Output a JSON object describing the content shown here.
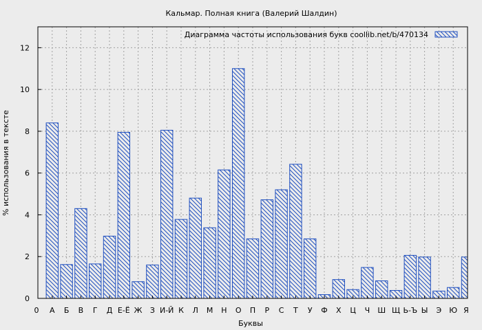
{
  "chart_data": {
    "type": "bar",
    "title": "Кальмар. Полная книга (Валерий Шалдин)",
    "xlabel": "Буквы",
    "ylabel": "% использования в тексте",
    "legend": {
      "label": "Диаграмма частоты использования букв  coollib.net/b/470134",
      "placement": "top-right"
    },
    "x_axis_end_labels": [
      "0",
      "Я"
    ],
    "categories": [
      "А",
      "Б",
      "В",
      "Г",
      "Д",
      "Е-Ё",
      "Ж",
      "З",
      "И-Й",
      "К",
      "Л",
      "М",
      "Н",
      "О",
      "П",
      "Р",
      "С",
      "Т",
      "У",
      "Ф",
      "Х",
      "Ц",
      "Ч",
      "Ш",
      "Щ",
      "Ь-Ъ",
      "Ы",
      "Э",
      "Ю",
      "Я"
    ],
    "values": [
      8.4,
      1.62,
      4.3,
      1.65,
      2.98,
      7.95,
      0.8,
      1.6,
      8.05,
      3.78,
      4.8,
      3.38,
      6.15,
      11.0,
      2.85,
      4.72,
      5.2,
      6.42,
      2.85,
      0.18,
      0.9,
      0.42,
      1.48,
      0.84,
      0.38,
      2.06,
      1.98,
      0.35,
      0.52,
      1.98
    ],
    "yticks": [
      0,
      2,
      4,
      6,
      8,
      10,
      12
    ],
    "ylim": [
      0,
      13
    ],
    "grid": true,
    "colors": {
      "bar_stroke": "#1f4fbf",
      "background": "#ececec",
      "grid": "#a0a0a0"
    }
  }
}
